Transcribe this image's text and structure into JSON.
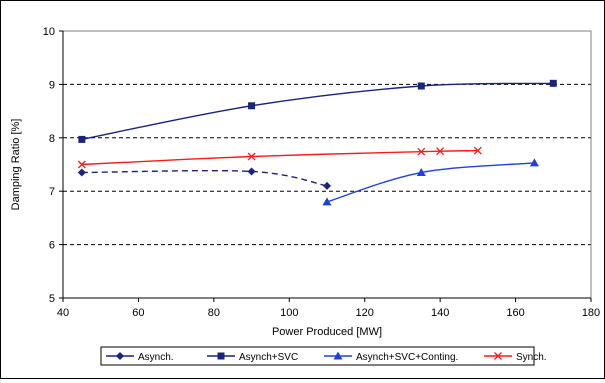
{
  "chart_data": {
    "type": "line",
    "title": "",
    "xlabel": "Power Produced [MW]",
    "ylabel": "Damping Ratio [%]",
    "xlim": [
      40,
      180
    ],
    "ylim": [
      5,
      10
    ],
    "xticks": [
      40,
      60,
      80,
      100,
      120,
      140,
      160,
      180
    ],
    "yticks": [
      5,
      6,
      7,
      8,
      9,
      10
    ],
    "xtick_labels": [
      "40",
      "60",
      "80",
      "100",
      "120",
      "140",
      "160",
      "180"
    ],
    "ytick_labels": [
      "5",
      "6",
      "7",
      "8",
      "9",
      "10"
    ],
    "grid": "horizontal-dashed",
    "legend_position": "bottom",
    "series": [
      {
        "name": "Asynch.",
        "color": "#1a237e",
        "marker": "diamond",
        "line": "dashed",
        "x": [
          45,
          90,
          110
        ],
        "y": [
          7.35,
          7.37,
          7.1
        ]
      },
      {
        "name": "Asynch+SVC",
        "color": "#1a237e",
        "marker": "square",
        "line": "solid",
        "x": [
          45,
          90,
          135,
          170
        ],
        "y": [
          7.97,
          8.6,
          8.97,
          9.02
        ]
      },
      {
        "name": "Asynch+SVC+Conting.",
        "color": "#1e40d8",
        "marker": "triangle",
        "line": "solid",
        "x": [
          110,
          135,
          165
        ],
        "y": [
          6.8,
          7.35,
          7.53
        ]
      },
      {
        "name": "Synch.",
        "color": "#ff1a1a",
        "marker": "x",
        "line": "solid",
        "x": [
          45,
          90,
          135,
          140,
          150
        ],
        "y": [
          7.5,
          7.65,
          7.74,
          7.75,
          7.76
        ]
      }
    ]
  }
}
